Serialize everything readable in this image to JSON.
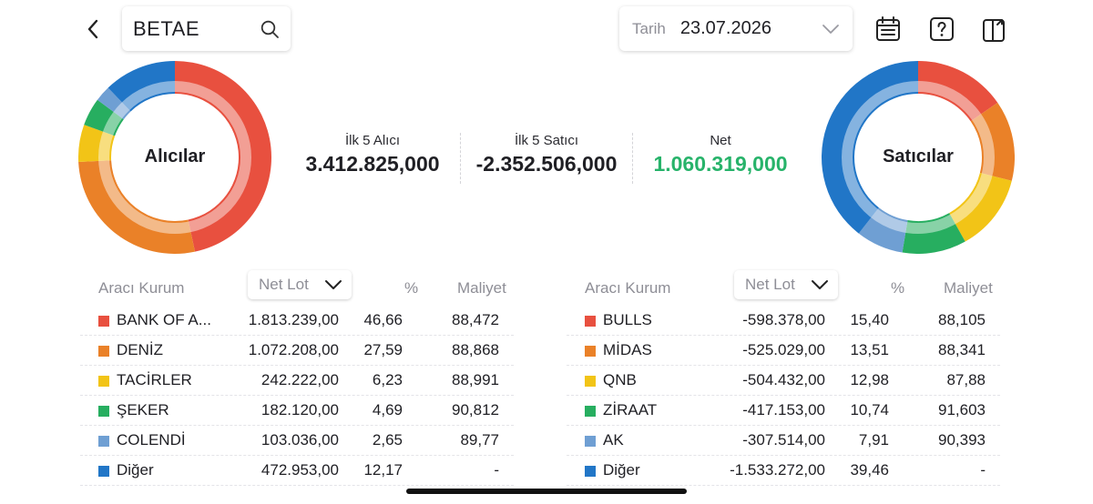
{
  "header": {
    "symbol": "BETAE",
    "date_label": "Tarih",
    "date_value": "23.07.2026"
  },
  "icons": {
    "back": "chevron-left-icon",
    "search": "search-icon",
    "date_dropdown": "chevron-down-icon",
    "calendar": "calendar-icon",
    "help": "help-icon",
    "share": "share-icon"
  },
  "donuts": {
    "buyers": {
      "label": "Alıcılar",
      "slices": [
        {
          "value": 46.66,
          "color": "#e8503f"
        },
        {
          "value": 27.59,
          "color": "#ea8128"
        },
        {
          "value": 6.23,
          "color": "#f2c417"
        },
        {
          "value": 4.69,
          "color": "#27ae60"
        },
        {
          "value": 2.65,
          "color": "#6f9fd3"
        },
        {
          "value": 12.17,
          "color": "#2176c7"
        }
      ]
    },
    "sellers": {
      "label": "Satıcılar",
      "slices": [
        {
          "value": 15.4,
          "color": "#e8503f"
        },
        {
          "value": 13.51,
          "color": "#ea8128"
        },
        {
          "value": 12.98,
          "color": "#f2c417"
        },
        {
          "value": 10.74,
          "color": "#27ae60"
        },
        {
          "value": 7.91,
          "color": "#6f9fd3"
        },
        {
          "value": 39.46,
          "color": "#2176c7"
        }
      ]
    }
  },
  "summary": {
    "buy_title": "İlk 5 Alıcı",
    "buy_value": "3.412.825,000",
    "sell_title": "İlk 5 Satıcı",
    "sell_value": "-2.352.506,000",
    "net_title": "Net",
    "net_value": "1.060.319,000",
    "net_color": "#27b36a"
  },
  "tables": {
    "columns": {
      "broker": "Aracı Kurum",
      "net_lot": "Net Lot",
      "pct": "%",
      "cost": "Maliyet"
    },
    "buyers": [
      {
        "name": "BANK OF A...",
        "lot": "1.813.239,00",
        "pct": "46,66",
        "cost": "88,472",
        "color": "#e8503f"
      },
      {
        "name": "DENİZ",
        "lot": "1.072.208,00",
        "pct": "27,59",
        "cost": "88,868",
        "color": "#ea8128"
      },
      {
        "name": "TACİRLER",
        "lot": "242.222,00",
        "pct": "6,23",
        "cost": "88,991",
        "color": "#f2c417"
      },
      {
        "name": "ŞEKER",
        "lot": "182.120,00",
        "pct": "4,69",
        "cost": "90,812",
        "color": "#27ae60"
      },
      {
        "name": "COLENDİ",
        "lot": "103.036,00",
        "pct": "2,65",
        "cost": "89,77",
        "color": "#6f9fd3"
      },
      {
        "name": "Diğer",
        "lot": "472.953,00",
        "pct": "12,17",
        "cost": "-",
        "color": "#2176c7"
      }
    ],
    "sellers": [
      {
        "name": "BULLS",
        "lot": "-598.378,00",
        "pct": "15,40",
        "cost": "88,105",
        "color": "#e8503f"
      },
      {
        "name": "MİDAS",
        "lot": "-525.029,00",
        "pct": "13,51",
        "cost": "88,341",
        "color": "#ea8128"
      },
      {
        "name": "QNB",
        "lot": "-504.432,00",
        "pct": "12,98",
        "cost": "87,88",
        "color": "#f2c417"
      },
      {
        "name": "ZİRAAT",
        "lot": "-417.153,00",
        "pct": "10,74",
        "cost": "91,603",
        "color": "#27ae60"
      },
      {
        "name": "AK",
        "lot": "-307.514,00",
        "pct": "7,91",
        "cost": "90,393",
        "color": "#6f9fd3"
      },
      {
        "name": "Diğer",
        "lot": "-1.533.272,00",
        "pct": "39,46",
        "cost": "-",
        "color": "#2176c7"
      }
    ]
  }
}
